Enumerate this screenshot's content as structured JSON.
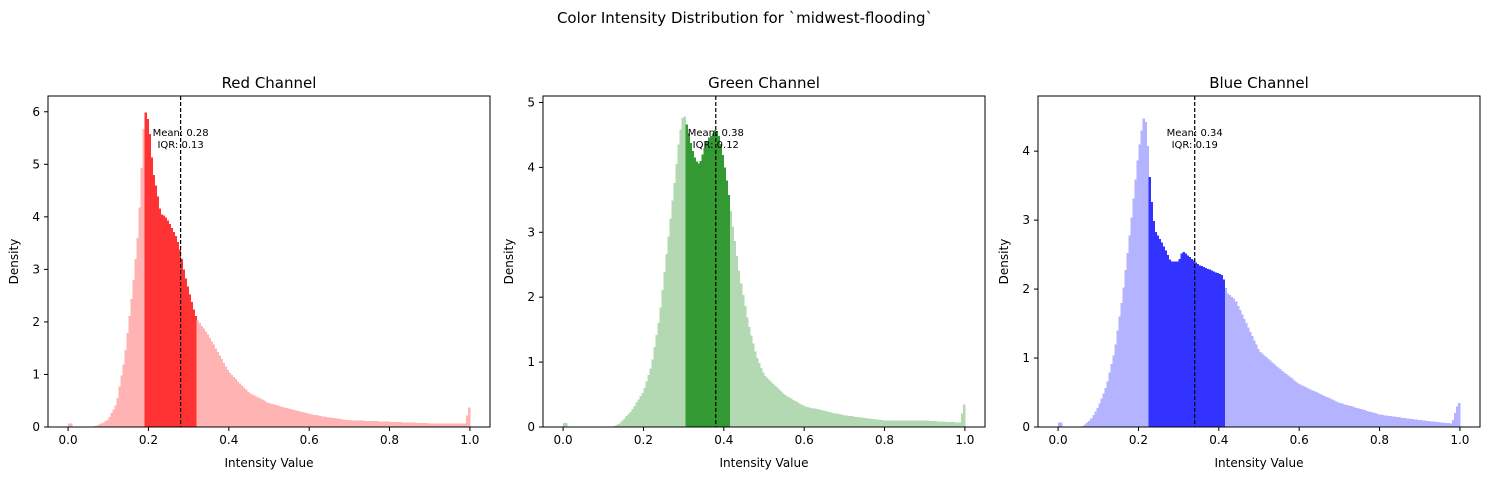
{
  "figure": {
    "suptitle": "Color Intensity Distribution for `midwest-flooding`"
  },
  "chart_data": [
    {
      "type": "bar",
      "title": "Red Channel",
      "xlabel": "Intensity Value",
      "ylabel": "Density",
      "xlim": [
        -0.05,
        1.05
      ],
      "ylim": [
        0,
        6.3
      ],
      "xticks": [
        "0.0",
        "0.2",
        "0.4",
        "0.6",
        "0.8",
        "1.0"
      ],
      "yticks": [
        "0",
        "1",
        "2",
        "3",
        "4",
        "5",
        "6"
      ],
      "color": "#ff0000",
      "light_color": "#ffb3b3",
      "dark_color": "#ff3333",
      "mean": 0.28,
      "iqr": 0.13,
      "iqr_range": [
        0.19,
        0.32
      ],
      "annotation": [
        "Mean: 0.28",
        "IQR: 0.13"
      ],
      "density_points": [
        [
          0.0,
          0.0
        ],
        [
          0.005,
          0.13
        ],
        [
          0.01,
          0.0
        ],
        [
          0.06,
          0.0
        ],
        [
          0.08,
          0.05
        ],
        [
          0.1,
          0.15
        ],
        [
          0.12,
          0.45
        ],
        [
          0.14,
          1.3
        ],
        [
          0.16,
          2.6
        ],
        [
          0.175,
          3.8
        ],
        [
          0.185,
          5.3
        ],
        [
          0.19,
          6.05
        ],
        [
          0.2,
          5.8
        ],
        [
          0.21,
          4.9
        ],
        [
          0.22,
          4.5
        ],
        [
          0.23,
          4.05
        ],
        [
          0.24,
          4.02
        ],
        [
          0.25,
          3.9
        ],
        [
          0.26,
          3.75
        ],
        [
          0.27,
          3.6
        ],
        [
          0.28,
          3.3
        ],
        [
          0.29,
          2.9
        ],
        [
          0.3,
          2.6
        ],
        [
          0.31,
          2.3
        ],
        [
          0.32,
          2.05
        ],
        [
          0.34,
          1.85
        ],
        [
          0.36,
          1.6
        ],
        [
          0.4,
          1.05
        ],
        [
          0.45,
          0.65
        ],
        [
          0.5,
          0.45
        ],
        [
          0.55,
          0.35
        ],
        [
          0.6,
          0.25
        ],
        [
          0.65,
          0.18
        ],
        [
          0.7,
          0.13
        ],
        [
          0.8,
          0.1
        ],
        [
          0.9,
          0.07
        ],
        [
          0.99,
          0.07
        ],
        [
          0.995,
          0.37
        ]
      ]
    },
    {
      "type": "bar",
      "title": "Green Channel",
      "xlabel": "Intensity Value",
      "ylabel": "Density",
      "xlim": [
        -0.05,
        1.05
      ],
      "ylim": [
        0,
        5.1
      ],
      "xticks": [
        "0.0",
        "0.2",
        "0.4",
        "0.6",
        "0.8",
        "1.0"
      ],
      "yticks": [
        "0",
        "1",
        "2",
        "3",
        "4",
        "5"
      ],
      "color": "#008000",
      "light_color": "#b3d9b3",
      "dark_color": "#339933",
      "mean": 0.38,
      "iqr": 0.12,
      "iqr_range": [
        0.305,
        0.415
      ],
      "annotation": [
        "Mean: 0.38",
        "IQR: 0.12"
      ],
      "density_points": [
        [
          0.0,
          0.0
        ],
        [
          0.005,
          0.13
        ],
        [
          0.01,
          0.0
        ],
        [
          0.12,
          0.0
        ],
        [
          0.14,
          0.05
        ],
        [
          0.17,
          0.25
        ],
        [
          0.2,
          0.55
        ],
        [
          0.22,
          0.95
        ],
        [
          0.24,
          1.7
        ],
        [
          0.26,
          2.8
        ],
        [
          0.28,
          3.9
        ],
        [
          0.29,
          4.5
        ],
        [
          0.3,
          4.85
        ],
        [
          0.31,
          4.6
        ],
        [
          0.32,
          4.3
        ],
        [
          0.33,
          4.1
        ],
        [
          0.34,
          4.05
        ],
        [
          0.35,
          4.25
        ],
        [
          0.36,
          4.45
        ],
        [
          0.37,
          4.5
        ],
        [
          0.38,
          4.6
        ],
        [
          0.39,
          4.45
        ],
        [
          0.4,
          4.1
        ],
        [
          0.41,
          3.7
        ],
        [
          0.42,
          3.2
        ],
        [
          0.44,
          2.3
        ],
        [
          0.46,
          1.6
        ],
        [
          0.48,
          1.1
        ],
        [
          0.5,
          0.8
        ],
        [
          0.55,
          0.5
        ],
        [
          0.6,
          0.32
        ],
        [
          0.7,
          0.18
        ],
        [
          0.8,
          0.1
        ],
        [
          0.9,
          0.1
        ],
        [
          0.95,
          0.08
        ],
        [
          0.99,
          0.07
        ],
        [
          0.995,
          0.35
        ]
      ]
    },
    {
      "type": "bar",
      "title": "Blue Channel",
      "xlabel": "Intensity Value",
      "ylabel": "Density",
      "xlim": [
        -0.05,
        1.05
      ],
      "ylim": [
        0,
        4.8
      ],
      "xticks": [
        "0.0",
        "0.2",
        "0.4",
        "0.6",
        "0.8",
        "1.0"
      ],
      "yticks": [
        "0",
        "1",
        "2",
        "3",
        "4"
      ],
      "color": "#0000ff",
      "light_color": "#b3b3ff",
      "dark_color": "#3333ff",
      "mean": 0.34,
      "iqr": 0.19,
      "iqr_range": [
        0.225,
        0.415
      ],
      "annotation": [
        "Mean: 0.34",
        "IQR: 0.19"
      ],
      "density_points": [
        [
          0.0,
          0.0
        ],
        [
          0.005,
          0.13
        ],
        [
          0.01,
          0.0
        ],
        [
          0.06,
          0.0
        ],
        [
          0.08,
          0.1
        ],
        [
          0.1,
          0.3
        ],
        [
          0.12,
          0.6
        ],
        [
          0.14,
          1.1
        ],
        [
          0.16,
          1.9
        ],
        [
          0.18,
          2.9
        ],
        [
          0.2,
          4.0
        ],
        [
          0.21,
          4.4
        ],
        [
          0.215,
          4.55
        ],
        [
          0.22,
          4.3
        ],
        [
          0.23,
          3.4
        ],
        [
          0.24,
          2.85
        ],
        [
          0.26,
          2.65
        ],
        [
          0.28,
          2.4
        ],
        [
          0.3,
          2.4
        ],
        [
          0.31,
          2.55
        ],
        [
          0.32,
          2.5
        ],
        [
          0.33,
          2.45
        ],
        [
          0.35,
          2.35
        ],
        [
          0.37,
          2.3
        ],
        [
          0.39,
          2.25
        ],
        [
          0.41,
          2.2
        ],
        [
          0.42,
          1.95
        ],
        [
          0.44,
          1.85
        ],
        [
          0.46,
          1.6
        ],
        [
          0.5,
          1.1
        ],
        [
          0.55,
          0.85
        ],
        [
          0.6,
          0.62
        ],
        [
          0.7,
          0.35
        ],
        [
          0.8,
          0.18
        ],
        [
          0.9,
          0.1
        ],
        [
          0.98,
          0.05
        ],
        [
          0.995,
          0.35
        ]
      ]
    }
  ]
}
